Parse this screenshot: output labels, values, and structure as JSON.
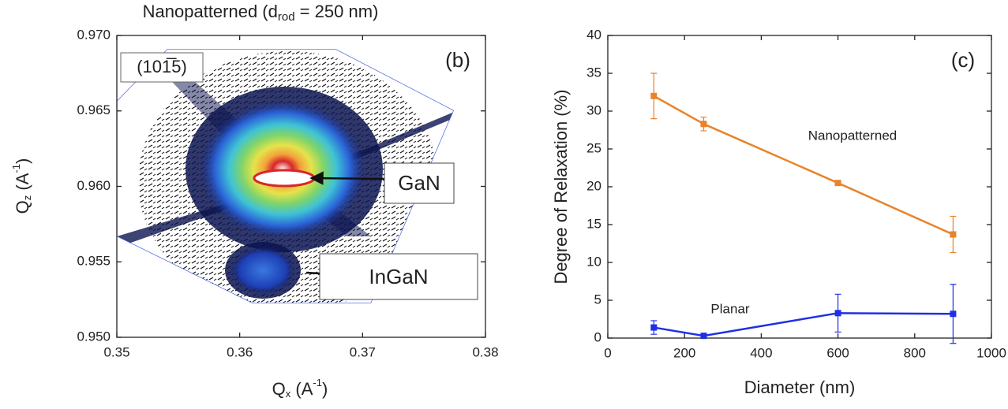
{
  "chart_data": [
    {
      "type": "map",
      "title": [
        "Nanopatterned (d",
        "rod",
        " = 250 nm)"
      ],
      "xlabel": [
        "Q",
        "x",
        " (A",
        "-1",
        ")"
      ],
      "ylabel": [
        "Q",
        "z",
        " (A",
        "-1",
        ")"
      ],
      "annotations": [
        "(101̅5)",
        "(b)",
        "GaN",
        "InGaN"
      ],
      "xlim": [
        0.35,
        0.38
      ],
      "xticks": [
        0.35,
        0.36,
        0.37,
        0.38
      ],
      "ylim": [
        0.95,
        0.97
      ],
      "yticks": [
        {
          "value": 0.95,
          "label": "0.950"
        },
        {
          "value": 0.955,
          "label": "0.955"
        },
        {
          "value": 0.96,
          "label": "0.960"
        },
        {
          "value": 0.965,
          "label": "0.965"
        },
        {
          "value": 0.97,
          "label": "0.970"
        }
      ]
    },
    {
      "type": "line",
      "xlabel": "Diameter (nm)",
      "ylabel": "Degree of Relaxation (%)",
      "annotations": [
        "(c)"
      ],
      "x": [
        120,
        250,
        600,
        900
      ],
      "series": [
        {
          "name": "Nanopatterned",
          "color": "#e8832a",
          "values": [
            32,
            28.3,
            20.5,
            13.7
          ],
          "errors": [
            3,
            0.9,
            0.2,
            2.4
          ]
        },
        {
          "name": "Planar",
          "color": "#1f2fe6",
          "values": [
            1.4,
            0.3,
            3.3,
            3.2
          ],
          "errors": [
            0.9,
            0.2,
            2.5,
            3.9
          ]
        }
      ],
      "xlim": [
        0,
        1000
      ],
      "xticks": [
        0,
        200,
        400,
        600,
        800,
        1000
      ],
      "ylim": [
        0,
        40
      ],
      "yticks": [
        0,
        5,
        10,
        15,
        20,
        25,
        30,
        35,
        40
      ]
    }
  ]
}
